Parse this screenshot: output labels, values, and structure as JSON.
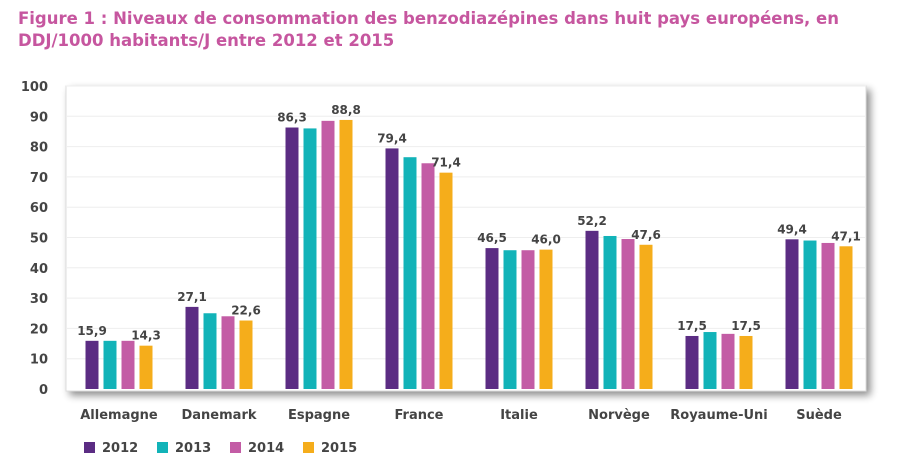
{
  "title": {
    "line1": "Figure 1 : Niveaux de consommation des benzodiazépines dans huit pays européens, en",
    "line2": "DDJ/1000 habitants/J entre 2012 et 2015"
  },
  "chart_data": {
    "type": "bar",
    "title": "Figure 1 : Niveaux de consommation des benzodiazépines dans huit pays européens, en DDJ/1000 habitants/J entre 2012 et 2015",
    "xlabel": "",
    "ylabel": "",
    "ylim": [
      0,
      100
    ],
    "yticks": [
      "0",
      "10",
      "20",
      "30",
      "40",
      "50",
      "60",
      "70",
      "80",
      "90",
      "100"
    ],
    "grid": true,
    "legend": "bottom-left",
    "categories": [
      "Allemagne",
      "Danemark",
      "Espagne",
      "France",
      "Italie",
      "Norvège",
      "Royaume-Uni",
      "Suède"
    ],
    "series": [
      {
        "name": "2012",
        "color": "#5b2c83",
        "values": [
          15.9,
          27.1,
          86.3,
          79.4,
          46.5,
          52.2,
          17.5,
          49.4
        ]
      },
      {
        "name": "2013",
        "color": "#12b3b8",
        "values": [
          15.9,
          25.0,
          86.0,
          76.5,
          45.8,
          50.5,
          18.8,
          49.0
        ]
      },
      {
        "name": "2014",
        "color": "#c35ca5",
        "values": [
          15.9,
          24.0,
          88.5,
          74.5,
          45.8,
          49.5,
          18.2,
          48.2
        ]
      },
      {
        "name": "2015",
        "color": "#f5ad1b",
        "values": [
          14.3,
          22.6,
          88.8,
          71.4,
          46.0,
          47.6,
          17.5,
          47.1
        ]
      }
    ],
    "data_labels": [
      [
        "15,9",
        "",
        "",
        "14,3"
      ],
      [
        "27,1",
        "",
        "",
        "22,6"
      ],
      [
        "86,3",
        "",
        "",
        "88,8"
      ],
      [
        "79,4",
        "",
        "",
        "71,4"
      ],
      [
        "46,5",
        "",
        "",
        "46,0"
      ],
      [
        "52,2",
        "",
        "",
        "47,6"
      ],
      [
        "17,5",
        "",
        "",
        "17,5"
      ],
      [
        "49,4",
        "",
        "",
        "47,1"
      ]
    ]
  }
}
